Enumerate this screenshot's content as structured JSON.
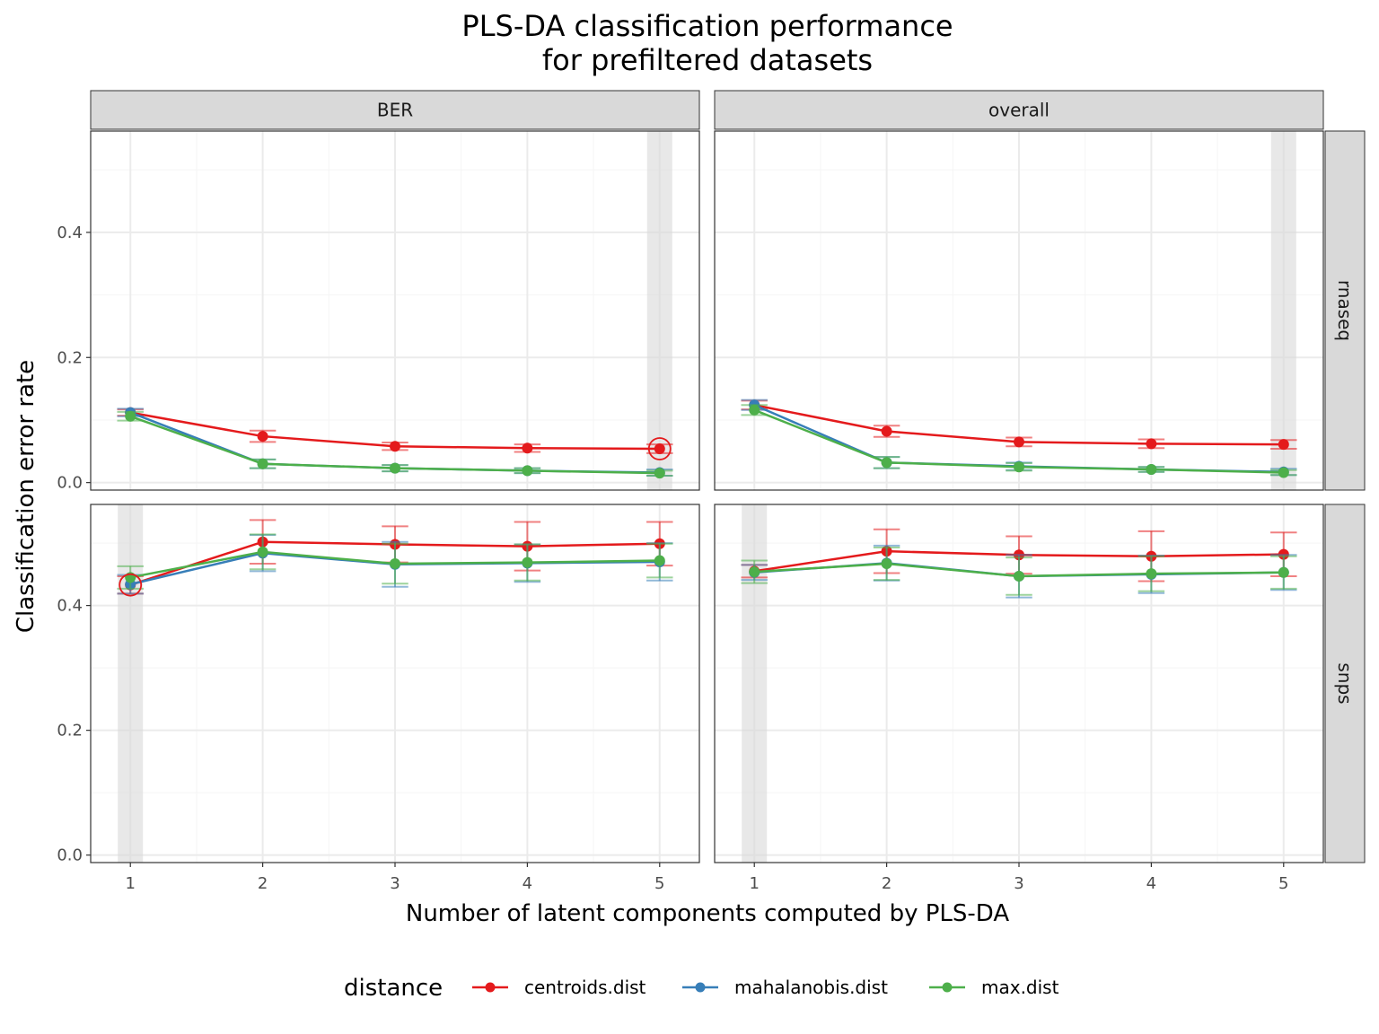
{
  "chart_data": {
    "type": "line",
    "title_lines": [
      "PLS-DA classification performance",
      "for prefiltered datasets"
    ],
    "xlabel": "Number of latent components computed by PLS-DA",
    "ylabel": "Classification error rate",
    "x": [
      1,
      2,
      3,
      4,
      5
    ],
    "x_ticks": [
      "1",
      "2",
      "3",
      "4",
      "5"
    ],
    "y_ticks": [
      "0.0",
      "0.2",
      "0.4"
    ],
    "y_tick_values": [
      0,
      0.2,
      0.4
    ],
    "columns": [
      "BER",
      "overall"
    ],
    "rows": [
      "rnaseq",
      "snps"
    ],
    "grid": true,
    "legend": {
      "title": "distance",
      "position": "bottom",
      "entries": [
        "centroids.dist",
        "mahalanobis.dist",
        "max.dist"
      ]
    },
    "colors": {
      "centroids.dist": "#e41a1c",
      "mahalanobis.dist": "#377eb8",
      "max.dist": "#4daf4a"
    },
    "panels": [
      {
        "row": "rnaseq",
        "col": "BER",
        "ylim": [
          -0.012,
          0.562
        ],
        "highlight_x": 5,
        "circle": {
          "x": 5,
          "y": 0.054,
          "series": "centroids.dist"
        },
        "series": [
          {
            "name": "centroids.dist",
            "values": [
              0.112,
              0.074,
              0.058,
              0.055,
              0.054
            ],
            "err": [
              0.005,
              0.009,
              0.006,
              0.006,
              0.007
            ]
          },
          {
            "name": "mahalanobis.dist",
            "values": [
              0.112,
              0.03,
              0.023,
              0.019,
              0.016
            ],
            "err": [
              0.006,
              0.007,
              0.005,
              0.004,
              0.005
            ]
          },
          {
            "name": "max.dist",
            "values": [
              0.106,
              0.03,
              0.023,
              0.019,
              0.015
            ],
            "err": [
              0.007,
              0.007,
              0.005,
              0.004,
              0.004
            ]
          }
        ]
      },
      {
        "row": "rnaseq",
        "col": "overall",
        "ylim": [
          -0.012,
          0.562
        ],
        "highlight_x": 5,
        "series": [
          {
            "name": "centroids.dist",
            "values": [
              0.124,
              0.082,
              0.065,
              0.062,
              0.061
            ],
            "err": [
              0.007,
              0.009,
              0.007,
              0.007,
              0.007
            ]
          },
          {
            "name": "mahalanobis.dist",
            "values": [
              0.124,
              0.032,
              0.026,
              0.021,
              0.017
            ],
            "err": [
              0.008,
              0.009,
              0.006,
              0.004,
              0.005
            ]
          },
          {
            "name": "max.dist",
            "values": [
              0.116,
              0.032,
              0.025,
              0.021,
              0.016
            ],
            "err": [
              0.008,
              0.009,
              0.006,
              0.004,
              0.004
            ]
          }
        ]
      },
      {
        "row": "snps",
        "col": "BER",
        "ylim": [
          -0.012,
          0.562
        ],
        "highlight_x": 1,
        "circle": {
          "x": 1,
          "y": 0.433,
          "series": "centroids.dist"
        },
        "series": [
          {
            "name": "centroids.dist",
            "values": [
              0.433,
              0.502,
              0.498,
              0.495,
              0.499
            ],
            "err": [
              0.014,
              0.035,
              0.029,
              0.039,
              0.035
            ]
          },
          {
            "name": "mahalanobis.dist",
            "values": [
              0.434,
              0.484,
              0.466,
              0.468,
              0.47
            ],
            "err": [
              0.015,
              0.029,
              0.036,
              0.03,
              0.03
            ]
          },
          {
            "name": "max.dist",
            "values": [
              0.445,
              0.486,
              0.467,
              0.469,
              0.472
            ],
            "err": [
              0.018,
              0.028,
              0.032,
              0.029,
              0.027
            ]
          }
        ]
      },
      {
        "row": "snps",
        "col": "overall",
        "ylim": [
          -0.012,
          0.562
        ],
        "highlight_x": 1,
        "series": [
          {
            "name": "centroids.dist",
            "values": [
              0.455,
              0.487,
              0.481,
              0.479,
              0.482
            ],
            "err": [
              0.01,
              0.035,
              0.03,
              0.04,
              0.035
            ]
          },
          {
            "name": "mahalanobis.dist",
            "values": [
              0.453,
              0.468,
              0.447,
              0.45,
              0.453
            ],
            "err": [
              0.012,
              0.028,
              0.034,
              0.03,
              0.028
            ]
          },
          {
            "name": "max.dist",
            "values": [
              0.454,
              0.467,
              0.447,
              0.451,
              0.453
            ],
            "err": [
              0.018,
              0.026,
              0.03,
              0.028,
              0.026
            ]
          }
        ]
      }
    ]
  }
}
